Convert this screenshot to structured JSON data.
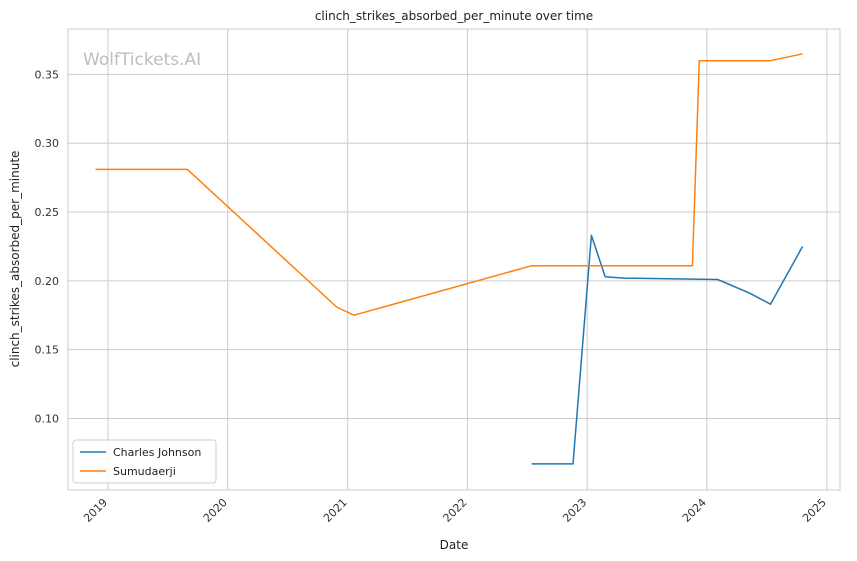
{
  "chart_data": {
    "type": "line",
    "title": "clinch_strikes_absorbed_per_minute over time",
    "xlabel": "Date",
    "ylabel": "clinch_strikes_absorbed_per_minute",
    "watermark": "WolfTickets.AI",
    "x_ticks": [
      "2019",
      "2020",
      "2021",
      "2022",
      "2023",
      "2024",
      "2025"
    ],
    "y_ticks": [
      "0.10",
      "0.15",
      "0.20",
      "0.25",
      "0.30",
      "0.35"
    ],
    "xlim": [
      "2018-09-01",
      "2025-02-10"
    ],
    "ylim": [
      0.048,
      0.383
    ],
    "grid": true,
    "legend_position": "lower-left",
    "series": [
      {
        "name": "Charles Johnson",
        "color": "#1f77b4",
        "x": [
          "2022-07-16",
          "2022-11-19",
          "2023-01-14",
          "2023-02-25",
          "2023-04-22",
          "2024-02-03",
          "2024-05-11",
          "2024-07-13",
          "2024-10-19"
        ],
        "y": [
          0.067,
          0.067,
          0.233,
          0.203,
          0.202,
          0.201,
          0.191,
          0.183,
          0.225
        ]
      },
      {
        "name": "Sumudaerji",
        "color": "#ff7f0e",
        "x": [
          "2018-11-24",
          "2019-08-31",
          "2020-11-28",
          "2021-01-20",
          "2022-07-16",
          "2023-11-18",
          "2023-12-09",
          "2024-07-13",
          "2024-10-19"
        ],
        "y": [
          0.281,
          0.281,
          0.181,
          0.175,
          0.211,
          0.211,
          0.36,
          0.36,
          0.365
        ]
      }
    ]
  }
}
